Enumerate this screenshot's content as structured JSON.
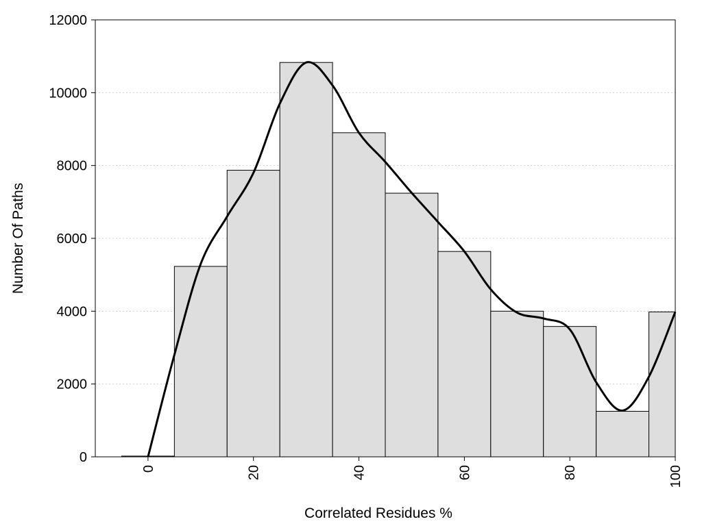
{
  "chart_data": {
    "type": "bar",
    "title": "",
    "xlabel": "Correlated Residues %",
    "ylabel": "Number Of Paths",
    "xlim": [
      -10,
      100
    ],
    "ylim": [
      0,
      12000
    ],
    "grid": "horizontal dotted",
    "bar_color": "#dedede",
    "bar_edge_color": "#000000",
    "line_color": "#000000",
    "x_ticks": [
      "0",
      "20",
      "40",
      "60",
      "80",
      "100"
    ],
    "y_ticks": [
      "0",
      "2000",
      "4000",
      "6000",
      "8000",
      "10000",
      "12000"
    ],
    "bins": [
      {
        "x0": -5,
        "x1": 5,
        "value": 20
      },
      {
        "x0": 5,
        "x1": 15,
        "value": 5230
      },
      {
        "x0": 15,
        "x1": 25,
        "value": 7870
      },
      {
        "x0": 25,
        "x1": 35,
        "value": 10830
      },
      {
        "x0": 35,
        "x1": 45,
        "value": 8900
      },
      {
        "x0": 45,
        "x1": 55,
        "value": 7240
      },
      {
        "x0": 55,
        "x1": 65,
        "value": 5640
      },
      {
        "x0": 65,
        "x1": 75,
        "value": 4000
      },
      {
        "x0": 75,
        "x1": 85,
        "value": 3580
      },
      {
        "x0": 85,
        "x1": 95,
        "value": 1250
      },
      {
        "x0": 95,
        "x1": 100,
        "value": 3980
      }
    ],
    "curve": {
      "x": [
        0,
        5,
        10,
        15,
        20,
        25,
        30,
        35,
        40,
        45,
        50,
        55,
        60,
        65,
        70,
        75,
        80,
        85,
        90,
        95,
        100
      ],
      "y": [
        0,
        2800,
        5300,
        6600,
        7800,
        9700,
        10830,
        10200,
        8900,
        8100,
        7250,
        6450,
        5640,
        4600,
        3960,
        3800,
        3500,
        2050,
        1270,
        2200,
        3980
      ]
    }
  }
}
